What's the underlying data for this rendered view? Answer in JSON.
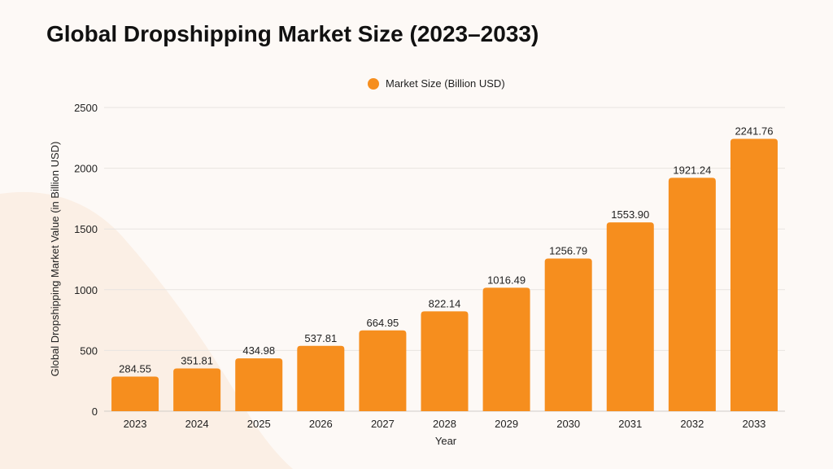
{
  "title": "Global Dropshipping Market Size (2023–2033)",
  "chart_data": {
    "type": "bar",
    "title": "Global Dropshipping Market Size (2023–2033)",
    "xlabel": "Year",
    "ylabel": "Global Dropshipping Market Value (in Billion USD)",
    "categories": [
      "2023",
      "2024",
      "2025",
      "2026",
      "2027",
      "2028",
      "2029",
      "2030",
      "2031",
      "2032",
      "2033"
    ],
    "series": [
      {
        "name": "Market Size (Billion USD)",
        "values": [
          284.55,
          351.81,
          434.98,
          537.81,
          664.95,
          822.14,
          1016.49,
          1256.79,
          1553.9,
          1921.24,
          2241.76
        ],
        "labels": [
          "284.55",
          "351.81",
          "434.98",
          "537.81",
          "664.95",
          "822.14",
          "1016.49",
          "1256.79",
          "1553.90",
          "1921.24",
          "2241.76"
        ]
      }
    ],
    "ylim": [
      0,
      2500
    ],
    "yticks": [
      0,
      500,
      1000,
      1500,
      2000,
      2500
    ],
    "grid": true,
    "legend": "top-center",
    "bar_color": "#f68e1e"
  }
}
